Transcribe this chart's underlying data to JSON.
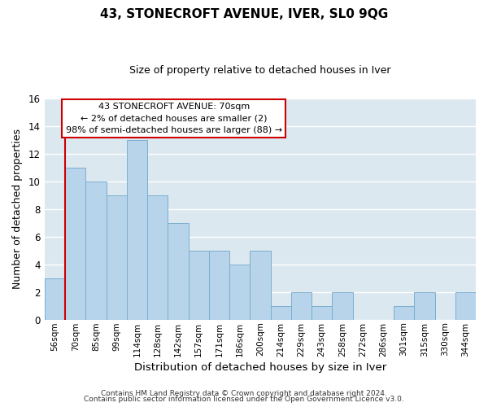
{
  "title": "43, STONECROFT AVENUE, IVER, SL0 9QG",
  "subtitle": "Size of property relative to detached houses in Iver",
  "xlabel": "Distribution of detached houses by size in Iver",
  "ylabel": "Number of detached properties",
  "bar_labels": [
    "56sqm",
    "70sqm",
    "85sqm",
    "99sqm",
    "114sqm",
    "128sqm",
    "142sqm",
    "157sqm",
    "171sqm",
    "186sqm",
    "200sqm",
    "214sqm",
    "229sqm",
    "243sqm",
    "258sqm",
    "272sqm",
    "286sqm",
    "301sqm",
    "315sqm",
    "330sqm",
    "344sqm"
  ],
  "bar_heights": [
    3,
    11,
    10,
    9,
    13,
    9,
    7,
    5,
    5,
    4,
    5,
    1,
    2,
    1,
    2,
    0,
    0,
    1,
    2,
    0,
    2
  ],
  "bar_color": "#b8d4ea",
  "bar_edge_color": "#7aaece",
  "vline_color": "#cc0000",
  "ylim": [
    0,
    16
  ],
  "yticks": [
    0,
    2,
    4,
    6,
    8,
    10,
    12,
    14,
    16
  ],
  "annotation_title": "43 STONECROFT AVENUE: 70sqm",
  "annotation_line1": "← 2% of detached houses are smaller (2)",
  "annotation_line2": "98% of semi-detached houses are larger (88) →",
  "box_color": "#ffffff",
  "box_edge_color": "#cc0000",
  "footer1": "Contains HM Land Registry data © Crown copyright and database right 2024.",
  "footer2": "Contains public sector information licensed under the Open Government Licence v3.0.",
  "bg_color": "#ffffff",
  "grid_color": "#dce8f0",
  "title_fontsize": 11,
  "subtitle_fontsize": 9,
  "ylabel_fontsize": 9,
  "xlabel_fontsize": 9.5
}
